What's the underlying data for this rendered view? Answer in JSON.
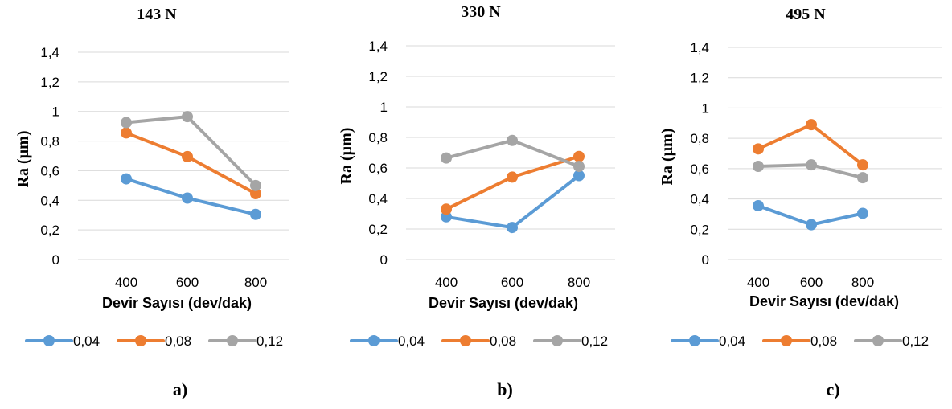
{
  "chart_data": [
    {
      "type": "line",
      "title": "143 N",
      "panel_label": "a)",
      "xlabel": "Devir Sayısı (dev/dak)",
      "ylabel": "Ra (µm)",
      "categories": [
        "400",
        "600",
        "800"
      ],
      "yticks": [
        "0",
        "0,2",
        "0,4",
        "0,6",
        "0,8",
        "1",
        "1,2",
        "1,4"
      ],
      "ylim": [
        0,
        1.4
      ],
      "grid": true,
      "legend_position": "bottom",
      "series": [
        {
          "name": "0,04",
          "color": "#5b9bd5",
          "values": [
            0.545,
            0.415,
            0.305
          ]
        },
        {
          "name": "0,08",
          "color": "#ed7d31",
          "values": [
            0.855,
            0.695,
            0.445
          ]
        },
        {
          "name": "0,12",
          "color": "#a5a5a5",
          "values": [
            0.925,
            0.965,
            0.5
          ]
        }
      ]
    },
    {
      "type": "line",
      "title": "330 N",
      "panel_label": "b)",
      "xlabel": "Devir Sayısı (dev/dak)",
      "ylabel": "Ra (µm)",
      "categories": [
        "400",
        "600",
        "800"
      ],
      "yticks": [
        "0",
        "0,2",
        "0,4",
        "0,6",
        "0,8",
        "1",
        "1,2",
        "1,4"
      ],
      "ylim": [
        0,
        1.4
      ],
      "grid": true,
      "legend_position": "bottom",
      "series": [
        {
          "name": "0,04",
          "color": "#5b9bd5",
          "values": [
            0.28,
            0.21,
            0.55
          ]
        },
        {
          "name": "0,08",
          "color": "#ed7d31",
          "values": [
            0.33,
            0.54,
            0.675
          ]
        },
        {
          "name": "0,12",
          "color": "#a5a5a5",
          "values": [
            0.665,
            0.78,
            0.61
          ]
        }
      ]
    },
    {
      "type": "line",
      "title": "495 N",
      "panel_label": "c)",
      "xlabel": "Devir Sayısı (dev/dak)",
      "ylabel": "Ra (µm)",
      "categories": [
        "400",
        "600",
        "800"
      ],
      "yticks": [
        "0",
        "0,2",
        "0,4",
        "0,6",
        "0,8",
        "1",
        "1,2",
        "1,4"
      ],
      "ylim": [
        0,
        1.4
      ],
      "grid": true,
      "legend_position": "bottom",
      "series": [
        {
          "name": "0,04",
          "color": "#5b9bd5",
          "values": [
            0.355,
            0.23,
            0.305
          ]
        },
        {
          "name": "0,08",
          "color": "#ed7d31",
          "values": [
            0.73,
            0.89,
            0.625
          ]
        },
        {
          "name": "0,12",
          "color": "#a5a5a5",
          "values": [
            0.615,
            0.625,
            0.54
          ]
        }
      ]
    }
  ]
}
